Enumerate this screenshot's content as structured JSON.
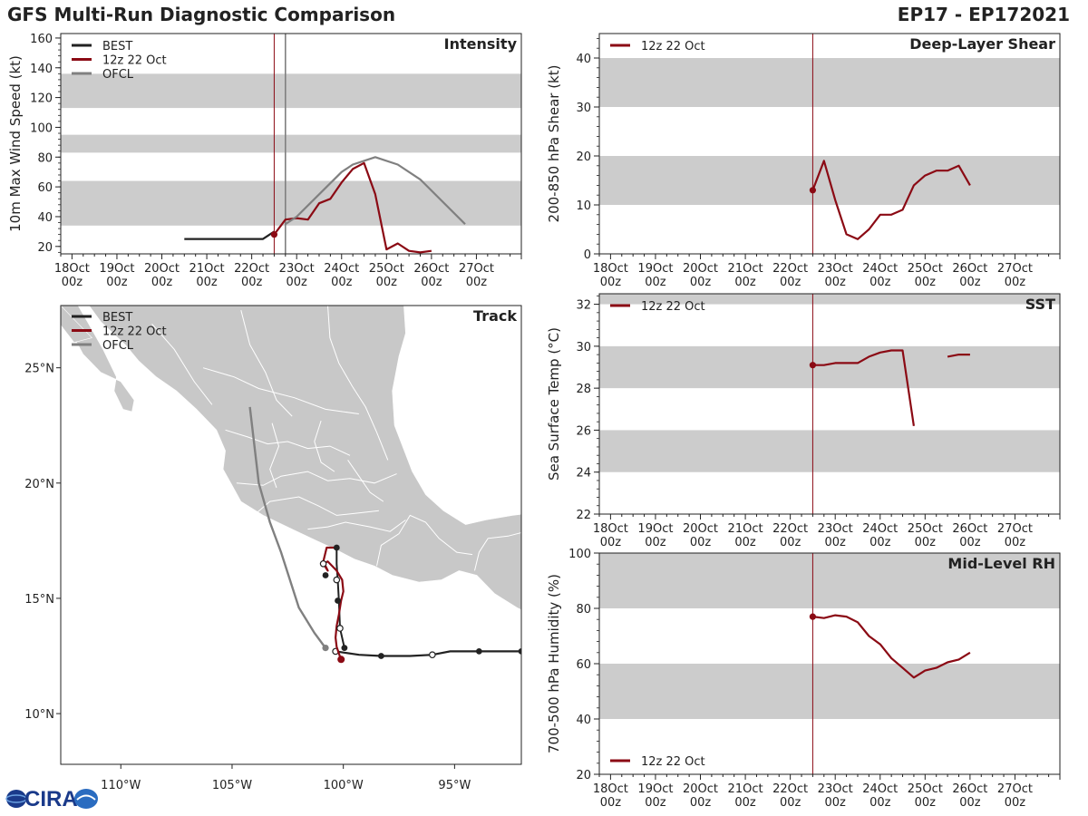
{
  "header": {
    "title": "GFS Multi-Run Diagnostic Comparison",
    "storm_id": "EP17 - EP172021"
  },
  "logo": {
    "text": "CIRA"
  },
  "colors": {
    "best": "#222222",
    "model": "#8b0a14",
    "ofcl": "#808080",
    "band": "#cccccc",
    "land": "#c8c8c8",
    "ocean": "#ffffff",
    "border": "#ffffff"
  },
  "time_axis": {
    "days": [
      18,
      19,
      20,
      21,
      22,
      23,
      24,
      25,
      26,
      27
    ],
    "labels": [
      "18Oct",
      "19Oct",
      "20Oct",
      "21Oct",
      "22Oct",
      "23Oct",
      "24Oct",
      "25Oct",
      "26Oct",
      "27Oct"
    ],
    "sub": "00z",
    "xlim": [
      17.75,
      28.0
    ],
    "init_day": 22.5,
    "ofcl_day": 22.75
  },
  "legend": {
    "best": "BEST",
    "model": "12z 22 Oct",
    "ofcl": "OFCL"
  },
  "chart_data": [
    {
      "id": "intensity",
      "type": "line",
      "title": "Intensity",
      "ylabel": "10m Max Wind Speed (kt)",
      "ylim": [
        15,
        163
      ],
      "yticks": [
        20,
        40,
        60,
        80,
        100,
        120,
        140,
        160
      ],
      "bands": [
        [
          34,
          64
        ],
        [
          83,
          95
        ],
        [
          113,
          136
        ]
      ],
      "legend_items": [
        "best",
        "model",
        "ofcl"
      ],
      "series": [
        {
          "name": "BEST",
          "key": "best",
          "x": [
            20.5,
            20.75,
            21.0,
            21.25,
            21.5,
            21.75,
            22.0,
            22.25,
            22.5
          ],
          "y": [
            25,
            25,
            25,
            25,
            25,
            25,
            25,
            25,
            30
          ]
        },
        {
          "name": "12z 22 Oct",
          "key": "model",
          "x": [
            22.5,
            22.75,
            23.0,
            23.25,
            23.5,
            23.75,
            24.0,
            24.25,
            24.5,
            24.75,
            25.0,
            25.25,
            25.5,
            25.75,
            26.0
          ],
          "y": [
            28,
            38,
            39,
            38,
            49,
            52,
            63,
            72,
            76,
            55,
            18,
            22,
            17,
            16,
            17
          ]
        },
        {
          "name": "OFCL",
          "key": "ofcl",
          "x": [
            22.75,
            23.0,
            23.5,
            24.0,
            24.25,
            24.75,
            25.25,
            25.75,
            26.75
          ],
          "y": [
            35,
            40,
            55,
            70,
            75,
            80,
            75,
            65,
            35
          ]
        }
      ]
    },
    {
      "id": "shear",
      "type": "line",
      "title": "Deep-Layer Shear",
      "ylabel": "200-850 hPa Shear (kt)",
      "ylim": [
        0,
        45
      ],
      "yticks": [
        0,
        10,
        20,
        30,
        40
      ],
      "bands": [
        [
          10,
          20
        ],
        [
          30,
          40
        ]
      ],
      "legend_items": [
        "model"
      ],
      "series": [
        {
          "name": "12z 22 Oct",
          "key": "model",
          "x": [
            22.5,
            22.75,
            23.0,
            23.25,
            23.5,
            23.75,
            24.0,
            24.25,
            24.5,
            24.75,
            25.0,
            25.25,
            25.5,
            25.75,
            26.0
          ],
          "y": [
            13,
            19,
            11,
            4,
            3,
            5,
            8,
            8,
            9,
            14,
            16,
            17,
            17,
            18,
            14
          ]
        }
      ]
    },
    {
      "id": "sst",
      "type": "line",
      "title": "SST",
      "ylabel": "Sea Surface Temp (°C)",
      "ylim": [
        22,
        32.5
      ],
      "yticks": [
        22,
        24,
        26,
        28,
        30,
        32
      ],
      "bands": [
        [
          24,
          26
        ],
        [
          28,
          30
        ],
        [
          32,
          33
        ]
      ],
      "legend_items": [
        "model"
      ],
      "series": [
        {
          "name": "12z 22 Oct",
          "key": "model",
          "x": [
            22.5,
            22.75,
            23.0,
            23.25,
            23.5,
            23.75,
            24.0,
            24.25,
            24.5,
            24.75
          ],
          "y": [
            29.1,
            29.1,
            29.2,
            29.2,
            29.2,
            29.5,
            29.7,
            29.8,
            29.8,
            26.2
          ]
        },
        {
          "name": "12z 22 Oct",
          "key": "model",
          "x": [
            25.5,
            25.75,
            26.0
          ],
          "y": [
            29.5,
            29.6,
            29.6
          ]
        }
      ]
    },
    {
      "id": "rh",
      "type": "line",
      "title": "Mid-Level RH",
      "ylabel": "700-500 hPa Humidity (%)",
      "ylim": [
        20,
        100
      ],
      "yticks": [
        20,
        40,
        60,
        80,
        100
      ],
      "bands": [
        [
          40,
          60
        ],
        [
          80,
          100
        ]
      ],
      "legend_items": [
        "model"
      ],
      "series": [
        {
          "name": "12z 22 Oct",
          "key": "model",
          "x": [
            22.5,
            22.75,
            23.0,
            23.25,
            23.5,
            23.75,
            24.0,
            24.25,
            24.5,
            24.75,
            25.0,
            25.25,
            25.5,
            25.75,
            26.0
          ],
          "y": [
            77,
            76.5,
            77.5,
            77,
            75,
            70,
            67,
            62,
            58.5,
            55,
            57.5,
            58.5,
            60.5,
            61.5,
            64
          ]
        }
      ]
    },
    {
      "id": "track",
      "type": "scatter",
      "title": "Track",
      "xlim": [
        -112.7,
        -92.0
      ],
      "ylim": [
        7.8,
        27.7
      ],
      "xticks": [
        -110,
        -105,
        -100,
        -95
      ],
      "xtick_labels": [
        "110°W",
        "105°W",
        "100°W",
        "95°W"
      ],
      "yticks": [
        10,
        15,
        20,
        25
      ],
      "ytick_labels": [
        "10°N",
        "15°N",
        "20°N",
        "25°N"
      ],
      "legend_items": [
        "best",
        "model",
        "ofcl"
      ],
      "best_track": {
        "lon": [
          -92.0,
          -93.9,
          -95.2,
          -96.0,
          -97.0,
          -98.3,
          -99.3,
          -100.0,
          -100.35
        ],
        "lat": [
          12.7,
          12.7,
          12.7,
          12.55,
          12.5,
          12.5,
          12.55,
          12.65,
          12.7
        ],
        "filled_markers": [
          -92.0,
          -93.9,
          -98.3
        ],
        "open_markers": [
          -96.0,
          -100.35
        ]
      },
      "model_track": {
        "lon": [
          -100.1,
          -100.2,
          -100.3,
          -100.35,
          -100.3,
          -100.2,
          -100.1,
          -100.0,
          -100.05,
          -100.3,
          -100.7,
          -100.9,
          -100.7,
          -100.9,
          -100.75,
          -100.55,
          -100.3
        ],
        "lat": [
          12.35,
          12.6,
          12.9,
          13.3,
          13.8,
          14.3,
          14.9,
          15.3,
          15.8,
          16.2,
          16.6,
          16.5,
          16.2,
          16.6,
          17.2,
          17.2,
          17.2
        ],
        "start_marker": [
          -100.1,
          12.35
        ]
      },
      "best_vertical": {
        "lon": [
          -99.95,
          -100.15,
          -100.2,
          -100.25,
          -100.3,
          -100.3
        ],
        "lat": [
          12.85,
          13.7,
          14.9,
          15.8,
          16.5,
          17.2
        ],
        "filled_markers": [
          [
            -99.95,
            12.85
          ],
          [
            -100.25,
            14.9
          ],
          [
            -100.3,
            17.2
          ],
          [
            -100.8,
            16.0
          ]
        ],
        "open_markers": [
          [
            -100.15,
            13.7
          ],
          [
            -100.3,
            15.8
          ],
          [
            -100.9,
            16.5
          ]
        ]
      },
      "ofcl_track": {
        "lon": [
          -100.8,
          -101.3,
          -102.0,
          -102.8,
          -103.3,
          -103.8,
          -104.2
        ],
        "lat": [
          12.85,
          13.5,
          14.6,
          17.0,
          18.3,
          20.0,
          23.3
        ],
        "start_marker": [
          -100.8,
          12.85
        ]
      },
      "land": [
        [
          [
            -117.0,
            32.5
          ],
          [
            -114.8,
            31.8
          ],
          [
            -114.6,
            30.5
          ],
          [
            -113.4,
            29.0
          ],
          [
            -112.8,
            28.4
          ],
          [
            -111.5,
            27.8
          ],
          [
            -110.9,
            27.0
          ],
          [
            -109.8,
            26.0
          ],
          [
            -109.2,
            25.3
          ],
          [
            -108.4,
            24.6
          ],
          [
            -107.5,
            24.0
          ],
          [
            -106.6,
            23.2
          ],
          [
            -105.7,
            22.3
          ],
          [
            -105.3,
            21.4
          ],
          [
            -105.4,
            20.6
          ],
          [
            -105.0,
            19.9
          ],
          [
            -104.6,
            19.2
          ],
          [
            -103.6,
            18.6
          ],
          [
            -102.3,
            18.0
          ],
          [
            -101.2,
            17.5
          ],
          [
            -100.3,
            17.1
          ],
          [
            -99.5,
            16.7
          ],
          [
            -98.6,
            16.4
          ],
          [
            -97.8,
            16.0
          ],
          [
            -96.6,
            15.7
          ],
          [
            -95.6,
            15.8
          ],
          [
            -94.8,
            16.2
          ],
          [
            -94.0,
            16.0
          ],
          [
            -93.2,
            15.2
          ],
          [
            -92.2,
            14.6
          ],
          [
            -91.0,
            14.0
          ],
          [
            -91.0,
            18.5
          ],
          [
            -91.5,
            18.7
          ],
          [
            -92.4,
            18.6
          ],
          [
            -93.6,
            18.4
          ],
          [
            -94.5,
            18.2
          ],
          [
            -95.5,
            18.8
          ],
          [
            -96.3,
            19.5
          ],
          [
            -96.9,
            20.5
          ],
          [
            -97.3,
            21.5
          ],
          [
            -97.7,
            22.5
          ],
          [
            -97.8,
            24.0
          ],
          [
            -97.5,
            25.5
          ],
          [
            -97.2,
            26.5
          ],
          [
            -97.3,
            28.0
          ],
          [
            -97.5,
            30.0
          ],
          [
            -110.0,
            30.0
          ],
          [
            -117.0,
            32.5
          ]
        ],
        [
          [
            -112.1,
            28.0
          ],
          [
            -111.5,
            27.0
          ],
          [
            -110.8,
            25.8
          ],
          [
            -110.2,
            24.6
          ],
          [
            -110.3,
            24.0
          ],
          [
            -109.9,
            23.2
          ],
          [
            -109.5,
            23.1
          ],
          [
            -109.4,
            23.6
          ],
          [
            -110.0,
            24.4
          ],
          [
            -110.9,
            24.8
          ],
          [
            -111.7,
            25.6
          ],
          [
            -112.2,
            26.5
          ],
          [
            -112.7,
            27.0
          ],
          [
            -113.4,
            27.6
          ],
          [
            -114.2,
            28.0
          ],
          [
            -112.1,
            28.0
          ]
        ],
        [
          [
            -113.0,
            28.0
          ],
          [
            -111.3,
            26.3
          ],
          [
            -112.1,
            26.1
          ],
          [
            -112.9,
            27.1
          ],
          [
            -113.0,
            28.0
          ]
        ]
      ],
      "borders": [
        [
          [
            -108.6,
            26.9
          ],
          [
            -107.6,
            25.8
          ],
          [
            -106.7,
            24.4
          ],
          [
            -105.9,
            23.4
          ]
        ],
        [
          [
            -104.6,
            27.5
          ],
          [
            -104.2,
            26.0
          ],
          [
            -103.5,
            24.8
          ],
          [
            -103.0,
            23.6
          ],
          [
            -102.3,
            22.9
          ]
        ],
        [
          [
            -100.7,
            27.7
          ],
          [
            -100.6,
            26.3
          ],
          [
            -100.2,
            25.2
          ],
          [
            -99.6,
            24.2
          ],
          [
            -99.0,
            23.3
          ],
          [
            -98.5,
            22.2
          ],
          [
            -98.0,
            21.0
          ]
        ],
        [
          [
            -106.3,
            25.0
          ],
          [
            -104.9,
            24.6
          ],
          [
            -103.8,
            24.1
          ],
          [
            -102.2,
            23.7
          ],
          [
            -100.8,
            23.2
          ],
          [
            -99.3,
            23.0
          ]
        ],
        [
          [
            -105.3,
            22.3
          ],
          [
            -104.3,
            22.0
          ],
          [
            -103.4,
            21.7
          ],
          [
            -102.5,
            21.8
          ],
          [
            -101.6,
            21.5
          ],
          [
            -100.6,
            21.6
          ],
          [
            -99.7,
            21.2
          ]
        ],
        [
          [
            -104.8,
            20.0
          ],
          [
            -103.6,
            19.9
          ],
          [
            -102.8,
            20.3
          ],
          [
            -101.6,
            20.5
          ],
          [
            -100.7,
            20.1
          ],
          [
            -99.7,
            20.2
          ],
          [
            -98.6,
            20.0
          ],
          [
            -97.6,
            20.4
          ]
        ],
        [
          [
            -103.9,
            18.7
          ],
          [
            -103.3,
            19.2
          ],
          [
            -102.0,
            19.4
          ],
          [
            -101.1,
            19.0
          ],
          [
            -100.3,
            18.6
          ],
          [
            -99.3,
            18.7
          ],
          [
            -98.4,
            18.8
          ]
        ],
        [
          [
            -101.6,
            18.0
          ],
          [
            -100.7,
            18.1
          ],
          [
            -99.9,
            18.3
          ],
          [
            -98.8,
            18.1
          ],
          [
            -97.9,
            17.9
          ],
          [
            -97.2,
            18.4
          ]
        ],
        [
          [
            -98.5,
            16.4
          ],
          [
            -98.3,
            17.3
          ],
          [
            -97.5,
            17.8
          ],
          [
            -97.0,
            18.6
          ],
          [
            -96.3,
            18.3
          ],
          [
            -95.7,
            17.6
          ],
          [
            -94.9,
            17.0
          ],
          [
            -94.2,
            16.9
          ]
        ],
        [
          [
            -94.1,
            16.2
          ],
          [
            -93.9,
            17.0
          ],
          [
            -93.5,
            17.6
          ],
          [
            -92.6,
            17.7
          ],
          [
            -91.8,
            17.9
          ]
        ],
        [
          [
            -103.2,
            22.6
          ],
          [
            -102.9,
            21.6
          ],
          [
            -103.3,
            20.6
          ],
          [
            -103.0,
            19.8
          ]
        ],
        [
          [
            -101.0,
            22.7
          ],
          [
            -101.3,
            21.8
          ],
          [
            -101.0,
            20.9
          ],
          [
            -100.4,
            20.5
          ]
        ],
        [
          [
            -99.8,
            21.0
          ],
          [
            -99.3,
            20.3
          ],
          [
            -98.8,
            19.6
          ],
          [
            -98.2,
            19.2
          ]
        ]
      ]
    }
  ]
}
